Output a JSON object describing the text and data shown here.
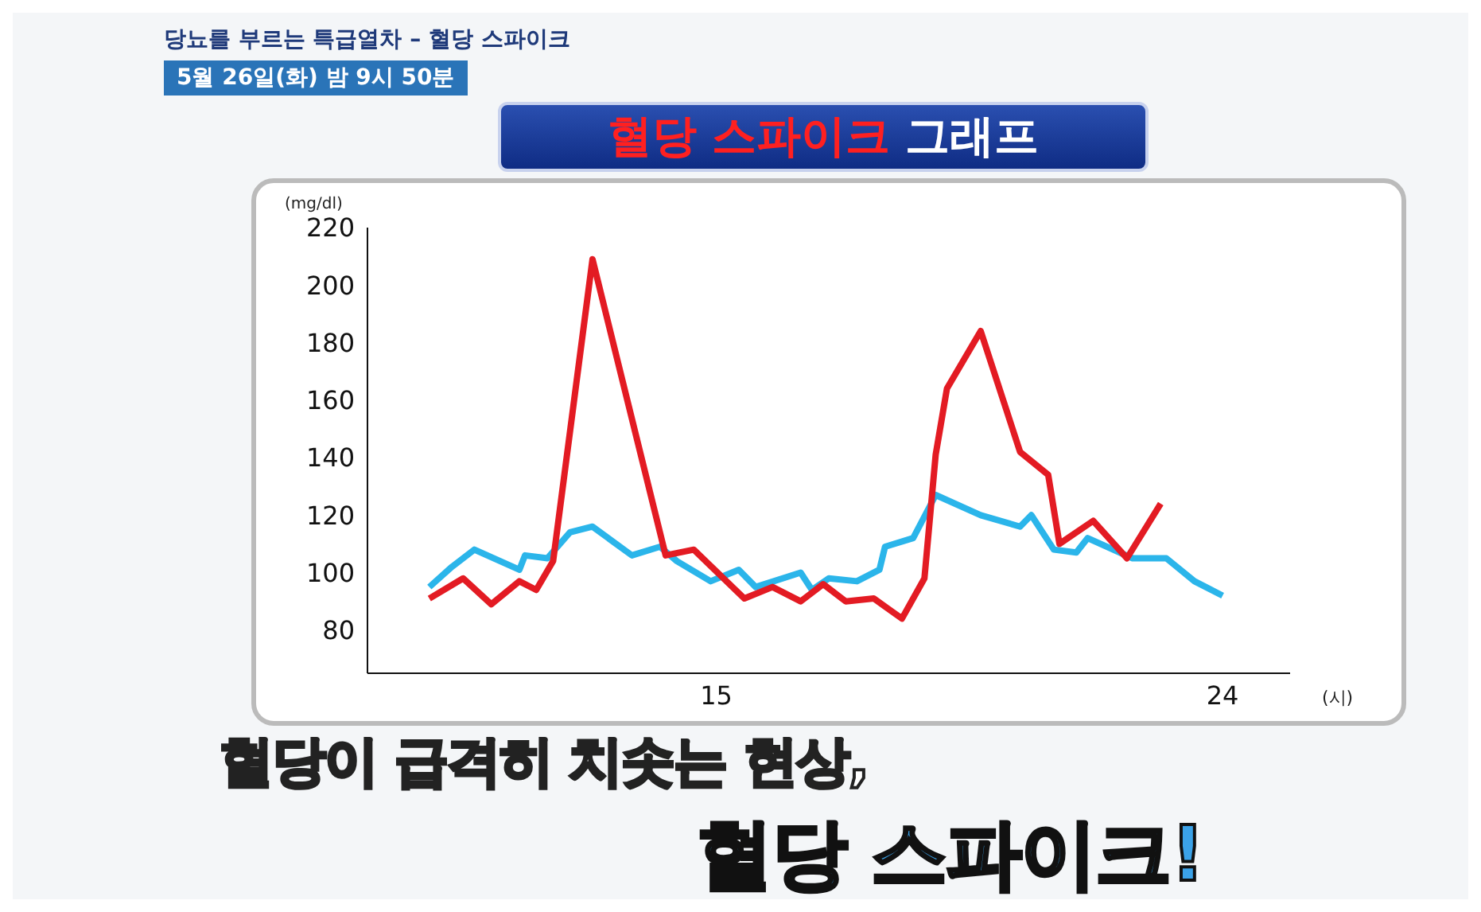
{
  "chart_data": {
    "type": "line",
    "title": "혈당 스파이크 그래프",
    "ylabel": "(mg/dl)",
    "xlabel": "(시)",
    "annotations": [
      "당뇨를 부르는 특급열차 – 혈당 스파이크",
      "5월 26일(화) 밤 9시 50분",
      "혈당이 급격히 치솟는 현상,",
      "혈당 스파이크!"
    ],
    "xlim": [
      8.8,
      25.2
    ],
    "xticks": [
      15,
      24
    ],
    "ylim": [
      65,
      220
    ],
    "yticks": [
      80,
      100,
      120,
      140,
      160,
      180,
      200,
      220
    ],
    "grid": false,
    "legend": false,
    "marker": "none",
    "line_style": "solid",
    "series": [
      {
        "color": "#2bb5ea",
        "x": [
          9.9,
          10.3,
          10.7,
          11.5,
          11.6,
          12.0,
          12.4,
          12.8,
          13.5,
          14.0,
          14.3,
          14.9,
          15.4,
          15.7,
          16.5,
          16.7,
          17.0,
          17.5,
          17.9,
          18.0,
          18.5,
          18.9,
          19.7,
          20.4,
          20.6,
          21.0,
          21.4,
          21.6,
          22.4,
          23.0,
          23.5,
          24.0
        ],
        "values": [
          95,
          102,
          108,
          101,
          106,
          105,
          114,
          116,
          106,
          109,
          104,
          97,
          101,
          95,
          100,
          94,
          98,
          97,
          101,
          109,
          112,
          127,
          120,
          116,
          120,
          108,
          107,
          112,
          105,
          105,
          97,
          92
        ]
      },
      {
        "color": "#e31b23",
        "x": [
          9.9,
          10.5,
          11.0,
          11.5,
          11.8,
          12.1,
          12.8,
          14.1,
          14.6,
          15.5,
          16.0,
          16.5,
          16.9,
          17.3,
          17.8,
          18.3,
          18.7,
          18.9,
          19.1,
          19.7,
          20.4,
          20.9,
          21.1,
          21.7,
          22.3,
          22.9
        ],
        "values": [
          91,
          98,
          89,
          97,
          94,
          104,
          209,
          106,
          108,
          91,
          95,
          90,
          96,
          90,
          91,
          84,
          98,
          141,
          164,
          184,
          142,
          134,
          110,
          118,
          105,
          124
        ]
      }
    ]
  }
}
